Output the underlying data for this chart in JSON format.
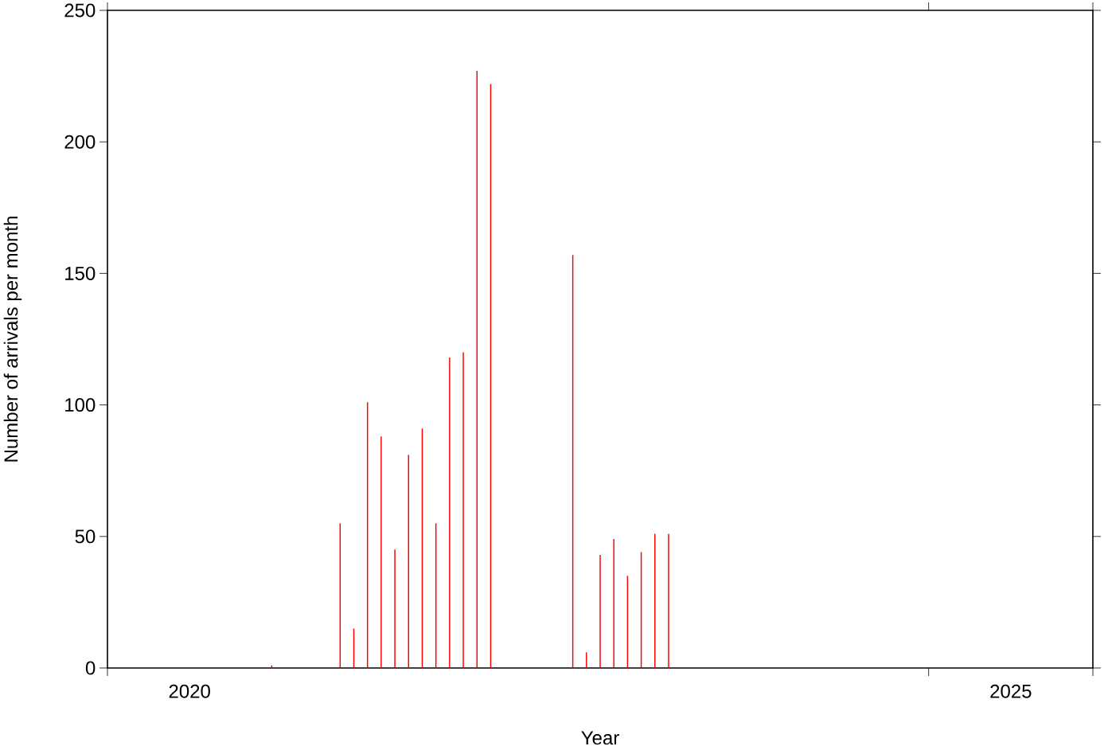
{
  "chart_data": {
    "type": "bar",
    "xlabel": "Year",
    "ylabel": "Number of arrivals per month",
    "x": [
      "2021-01",
      "2021-06",
      "2021-07",
      "2021-08",
      "2021-09",
      "2021-10",
      "2021-11",
      "2021-12",
      "2022-01",
      "2022-02",
      "2022-03",
      "2022-04",
      "2022-05",
      "2022-11",
      "2022-12",
      "2023-01",
      "2023-02",
      "2023-03",
      "2023-04",
      "2023-05",
      "2023-06"
    ],
    "values": [
      1,
      55,
      15,
      101,
      88,
      45,
      81,
      91,
      55,
      118,
      120,
      227,
      222,
      157,
      6,
      43,
      49,
      35,
      44,
      51,
      51
    ],
    "color": "#ff0000",
    "xlim": [
      "2020",
      "2026"
    ],
    "xticks": [
      {
        "value": "2020",
        "label": null
      },
      {
        "value": "2020-07",
        "label": "2020"
      },
      {
        "value": "2025",
        "label": null
      },
      {
        "value": "2025-07",
        "label": "2025"
      },
      {
        "value": "2026",
        "label": null
      }
    ],
    "ylim": [
      0,
      250
    ],
    "yticks": [
      0,
      50,
      100,
      150,
      200,
      250
    ]
  }
}
